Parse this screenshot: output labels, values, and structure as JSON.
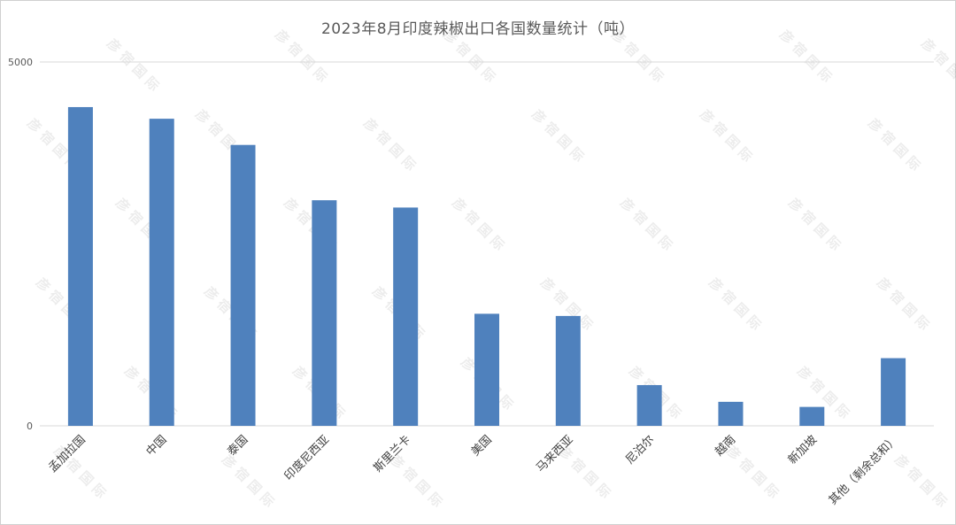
{
  "watermark": "彦 宿 国 际",
  "chart_data": {
    "type": "bar",
    "title": "2023年8月印度辣椒出口各国数量统计（吨）",
    "xlabel": "",
    "ylabel": "",
    "ylim": [
      0,
      5000
    ],
    "ytick_labels": [
      "0",
      "5000"
    ],
    "grid": true,
    "legend": "none",
    "bar_color": "#4f81bd",
    "categories": [
      "孟加拉国",
      "中国",
      "泰国",
      "印度尼西亚",
      "斯里兰卡",
      "美国",
      "马来西亚",
      "尼泊尔",
      "越南",
      "新加坡",
      "其他（剩余总和）"
    ],
    "values": [
      4380,
      4220,
      3860,
      3100,
      3000,
      1540,
      1510,
      560,
      330,
      260,
      930
    ]
  }
}
